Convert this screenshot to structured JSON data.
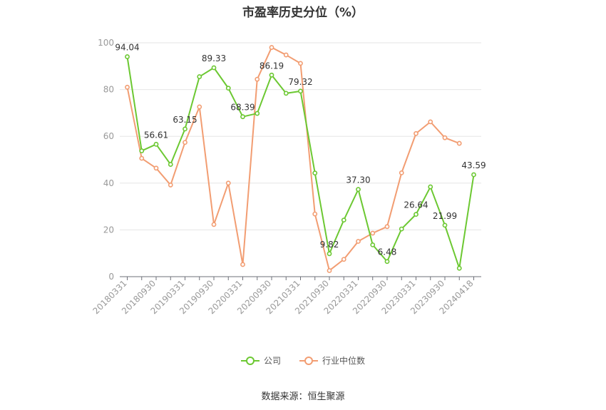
{
  "chart_data": {
    "type": "line",
    "title": "市盈率历史分位（%）",
    "x": [
      "20180331",
      "20180630",
      "20180930",
      "20181231",
      "20190331",
      "20190630",
      "20190930",
      "20191231",
      "20200331",
      "20200630",
      "20200930",
      "20201231",
      "20210331",
      "20210630",
      "20210930",
      "20211231",
      "20220331",
      "20220630",
      "20220930",
      "20221231",
      "20230331",
      "20230630",
      "20230930",
      "20231231",
      "20240418"
    ],
    "x_tick_labels": [
      "20180331",
      "20180930",
      "20190331",
      "20190930",
      "20200331",
      "20200930",
      "20210331",
      "20210930",
      "20220331",
      "20220930",
      "20230331",
      "20230930",
      "20240418"
    ],
    "ylim": [
      0,
      100
    ],
    "y_ticks": [
      "0",
      "20",
      "40",
      "60",
      "80",
      "100"
    ],
    "grid": true,
    "legend_position": "bottom",
    "series": [
      {
        "name": "公司",
        "color": "#6cc832",
        "values": [
          94.04,
          53.8,
          56.61,
          48.0,
          63.15,
          85.5,
          89.33,
          80.6,
          68.39,
          69.8,
          86.19,
          78.4,
          79.32,
          44.3,
          9.82,
          24.2,
          37.3,
          13.6,
          6.48,
          20.4,
          26.64,
          38.4,
          21.99,
          3.6,
          43.59
        ],
        "data_labels": [
          {
            "index": 0,
            "text": "94.04"
          },
          {
            "index": 2,
            "text": "56.61"
          },
          {
            "index": 4,
            "text": "63.15"
          },
          {
            "index": 6,
            "text": "89.33"
          },
          {
            "index": 8,
            "text": "68.39"
          },
          {
            "index": 10,
            "text": "86.19"
          },
          {
            "index": 12,
            "text": "79.32"
          },
          {
            "index": 14,
            "text": "9.82"
          },
          {
            "index": 16,
            "text": "37.30"
          },
          {
            "index": 18,
            "text": "6.48"
          },
          {
            "index": 20,
            "text": "26.64"
          },
          {
            "index": 22,
            "text": "21.99"
          },
          {
            "index": 24,
            "text": "43.59"
          }
        ]
      },
      {
        "name": "行业中位数",
        "color": "#f29d72",
        "values": [
          81.0,
          50.6,
          46.4,
          39.2,
          57.4,
          72.6,
          22.3,
          40.0,
          5.2,
          84.4,
          98.0,
          94.8,
          91.2,
          26.8,
          2.6,
          7.4,
          15.1,
          18.6,
          21.4,
          44.4,
          61.2,
          66.2,
          59.4,
          57.0,
          null
        ]
      }
    ]
  },
  "footer": {
    "source": "数据来源：恒生聚源"
  }
}
